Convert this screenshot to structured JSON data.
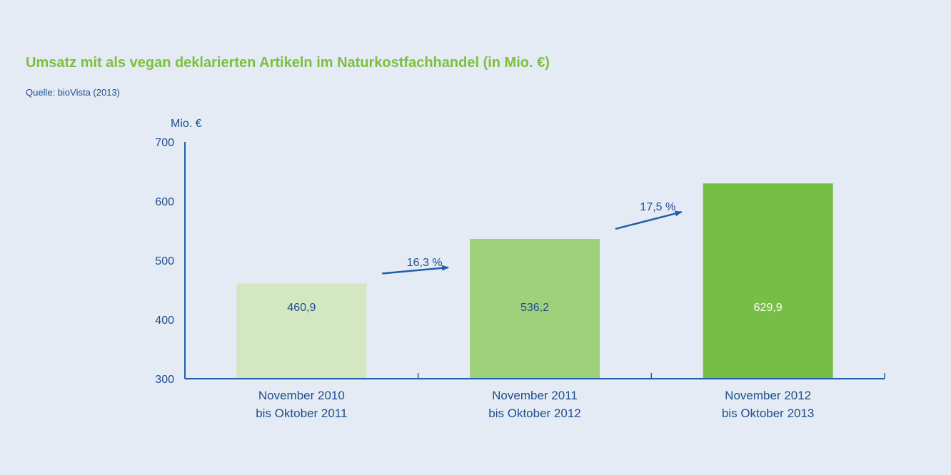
{
  "title": "Umsatz mit als vegan deklarierten Artikeln im Naturkostfachhandel (in Mio. €)",
  "source": "Quelle: bioVista (2013)",
  "colors": {
    "background": "#e4ebf5",
    "title": "#7dbf3d",
    "axis": "#1f5fa8",
    "text": "#1f4e8c",
    "bars": [
      "#d3e8c2",
      "#9fd17d",
      "#76be45"
    ],
    "bar_label": [
      "#1f4e8c",
      "#1f4e8c",
      "#ffffff"
    ]
  },
  "chart_data": {
    "type": "bar",
    "ylabel": "Mio. €",
    "ylim": [
      300,
      700
    ],
    "yticks": [
      "700",
      "600",
      "500",
      "400",
      "300"
    ],
    "categories": [
      [
        "November 2010",
        "bis Oktober 2011"
      ],
      [
        "November 2011",
        "bis Oktober 2012"
      ],
      [
        "November 2012",
        "bis Oktober 2013"
      ]
    ],
    "values": [
      460.9,
      536.2,
      629.9
    ],
    "value_labels": [
      "460,9",
      "536,2",
      "629,9"
    ],
    "growth": [
      "16,3 %",
      "17,5 %"
    ],
    "grid": false
  }
}
